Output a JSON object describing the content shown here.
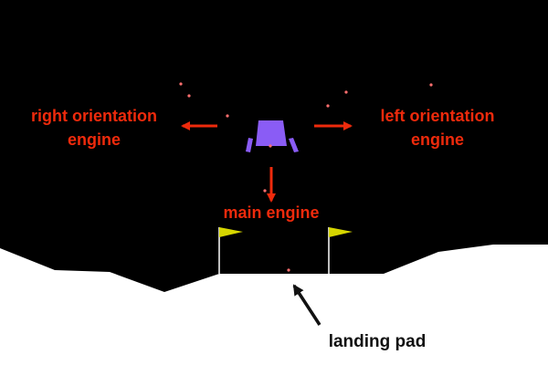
{
  "labels": {
    "right_engine_line1": "right orientation",
    "right_engine_line2": "engine",
    "left_engine_line1": "left orientation",
    "left_engine_line2": "engine",
    "main_engine": "main engine",
    "landing_pad": "landing pad"
  },
  "colors": {
    "sky": "#000000",
    "ground": "#ffffff",
    "lander": "#8a5cf5",
    "flag": "#d6d600",
    "flag_pole": "#ffffff",
    "particle": "#ff6f6f",
    "annotation_red": "#ee2a0c",
    "annotation_black": "#111111"
  },
  "icons": {
    "lander": "lunar-lander-icon",
    "flag": "flag-icon",
    "arrow": "arrow-icon"
  }
}
